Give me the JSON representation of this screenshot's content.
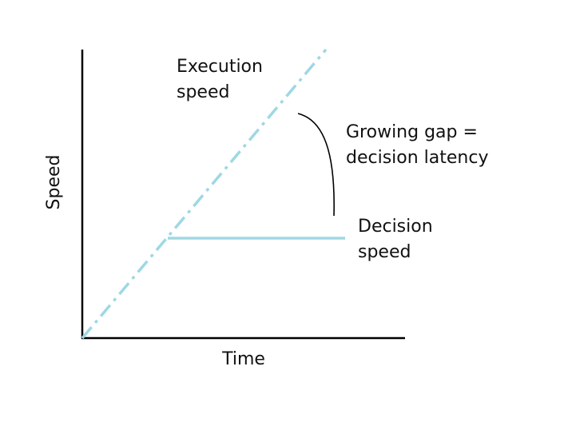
{
  "axes": {
    "x_label": "Time",
    "y_label": "Speed"
  },
  "lines": [
    {
      "label_lines": [
        "Execution",
        "speed"
      ]
    },
    {
      "label_lines": [
        "Decision",
        "speed"
      ]
    }
  ],
  "annotation": {
    "label_lines": [
      "Growing gap =",
      "decision latency"
    ]
  }
}
